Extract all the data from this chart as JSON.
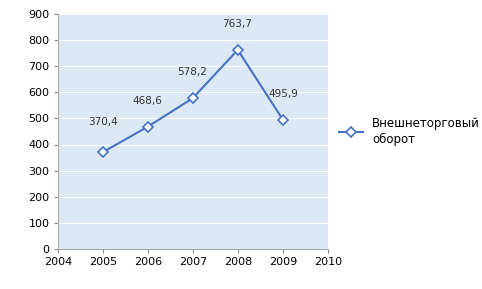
{
  "years": [
    2005,
    2006,
    2007,
    2008,
    2009
  ],
  "values": [
    370.4,
    468.6,
    578.2,
    763.7,
    495.9
  ],
  "labels": [
    "370,4",
    "468,6",
    "578,2",
    "763,7",
    "495,9"
  ],
  "label_offsets_x": [
    -0.15,
    -0.18,
    -0.18,
    -0.18,
    0.18
  ],
  "label_offsets_y": [
    18,
    15,
    15,
    15,
    15
  ],
  "xlim": [
    2004,
    2010
  ],
  "ylim": [
    0,
    900
  ],
  "yticks": [
    0,
    100,
    200,
    300,
    400,
    500,
    600,
    700,
    800,
    900
  ],
  "xticks": [
    2004,
    2005,
    2006,
    2007,
    2008,
    2009,
    2010
  ],
  "line_color": "#4472C4",
  "marker_color": "#4472C4",
  "marker_face": "#ffffff",
  "legend_label": "Внешнеторговый\nоборот",
  "bg_color": "#ffffff",
  "plot_bg_color": "#dce9f5",
  "grid_color": "#ffffff",
  "label_fontsize": 7.5,
  "tick_fontsize": 8,
  "legend_fontsize": 8.5
}
